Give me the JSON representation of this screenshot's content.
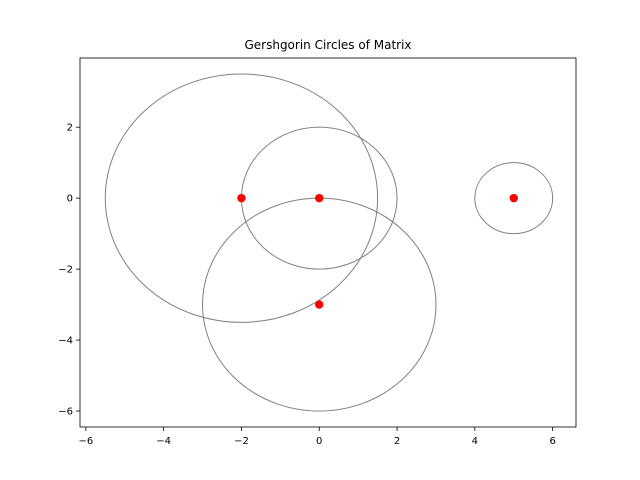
{
  "chart_data": {
    "type": "scatter",
    "title": "Gershgorin Circles of Matrix",
    "xlabel": "",
    "ylabel": "",
    "xlim": [
      -6.15,
      6.6
    ],
    "ylim": [
      -6.45,
      3.95
    ],
    "xticks": [
      -6,
      -4,
      -2,
      0,
      2,
      4,
      6
    ],
    "yticks": [
      -6,
      -4,
      -2,
      0,
      2
    ],
    "grid": false,
    "legend": "none",
    "circles": [
      {
        "cx": -2,
        "cy": 0,
        "r": 3.5
      },
      {
        "cx": 0,
        "cy": 0,
        "r": 2
      },
      {
        "cx": 0,
        "cy": -3,
        "r": 3
      },
      {
        "cx": 5,
        "cy": 0,
        "r": 1
      }
    ],
    "points": [
      {
        "x": -2,
        "y": 0
      },
      {
        "x": 0,
        "y": 0
      },
      {
        "x": 0,
        "y": -3
      },
      {
        "x": 5,
        "y": 0
      }
    ],
    "circle_color": "#808080",
    "point_color": "#ff0000"
  }
}
